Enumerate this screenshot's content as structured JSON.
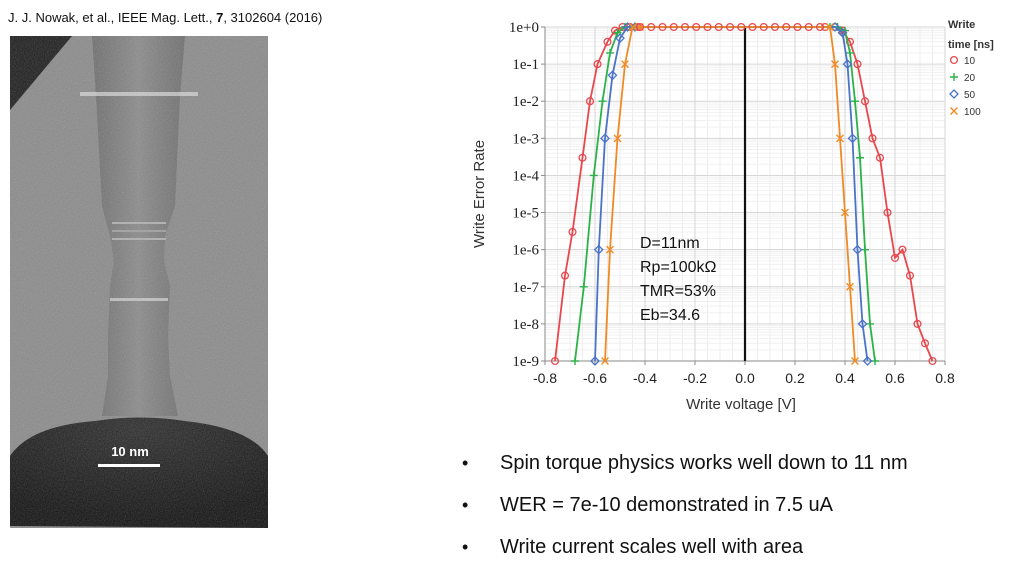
{
  "citation": {
    "prefix": "J. J. Nowak, et al., IEEE Mag. Lett., ",
    "volume": "7",
    "suffix": ", 3102604 (2016)"
  },
  "tem_image": {
    "scale_label": "10 nm"
  },
  "bullets": [
    "Spin torque physics works well down to 11 nm",
    "WER = 7e-10 demonstrated in 7.5 uA",
    "Write current scales well with area"
  ],
  "chart_data": {
    "type": "line",
    "title": "",
    "xlabel": "Write voltage [V]",
    "ylabel": "Write Error Rate",
    "xlim": [
      -0.8,
      0.8
    ],
    "ylim": [
      1e-09,
      1
    ],
    "y_scale": "log",
    "x_ticks": [
      -0.8,
      -0.6,
      -0.4,
      -0.2,
      0.0,
      0.2,
      0.4,
      0.6,
      0.8
    ],
    "x_tick_labels": [
      "-0.8",
      "-0.6",
      "-0.4",
      "-0.2",
      "0.0",
      "0.2",
      "0.4",
      "0.6",
      "0.8"
    ],
    "y_ticks": [
      1,
      0.1,
      0.01,
      0.001,
      0.0001,
      1e-05,
      1e-06,
      1e-07,
      1e-08,
      1e-09
    ],
    "y_tick_labels": [
      "1e+0",
      "1e-1",
      "1e-2",
      "1e-3",
      "1e-4",
      "1e-5",
      "1e-6",
      "1e-7",
      "1e-8",
      "1e-9"
    ],
    "grid": true,
    "legend": {
      "title_line1": "Write",
      "title_line2": "time [ns]",
      "placement": "top-right"
    },
    "annotations": [
      "D=11nm",
      "Rp=100kΩ",
      "TMR=53%",
      "Eb=34.6"
    ],
    "series": [
      {
        "name": "10",
        "color": "#e8474d",
        "marker": "circle",
        "negative": [
          [
            -0.76,
            1e-09
          ],
          [
            -0.72,
            2e-07
          ],
          [
            -0.69,
            3e-06
          ],
          [
            -0.65,
            0.0003
          ],
          [
            -0.62,
            0.01
          ],
          [
            -0.59,
            0.1
          ],
          [
            -0.55,
            0.4
          ],
          [
            -0.52,
            0.8
          ],
          [
            -0.49,
            1
          ],
          [
            -0.46,
            1
          ],
          [
            -0.43,
            1
          ]
        ],
        "positive": [
          [
            0.32,
            1
          ],
          [
            0.36,
            1
          ],
          [
            0.39,
            0.8
          ],
          [
            0.42,
            0.4
          ],
          [
            0.45,
            0.1
          ],
          [
            0.48,
            0.01
          ],
          [
            0.51,
            0.001
          ],
          [
            0.54,
            0.0003
          ],
          [
            0.57,
            1e-05
          ],
          [
            0.6,
            6e-07
          ],
          [
            0.63,
            1e-06
          ],
          [
            0.66,
            2e-07
          ],
          [
            0.69,
            1e-08
          ],
          [
            0.72,
            3e-09
          ],
          [
            0.75,
            1e-09
          ]
        ]
      },
      {
        "name": "20",
        "color": "#2db24a",
        "marker": "plus",
        "negative": [
          [
            -0.68,
            1e-09
          ],
          [
            -0.645,
            1e-07
          ],
          [
            -0.605,
            0.0001
          ],
          [
            -0.57,
            0.01
          ],
          [
            -0.54,
            0.2
          ],
          [
            -0.51,
            0.7
          ],
          [
            -0.48,
            1
          ],
          [
            -0.44,
            1
          ]
        ],
        "positive": [
          [
            0.34,
            1
          ],
          [
            0.37,
            1
          ],
          [
            0.4,
            0.8
          ],
          [
            0.42,
            0.2
          ],
          [
            0.44,
            0.01
          ],
          [
            0.46,
            0.0003
          ],
          [
            0.48,
            1e-06
          ],
          [
            0.5,
            1e-08
          ],
          [
            0.52,
            1e-09
          ]
        ]
      },
      {
        "name": "50",
        "color": "#4a73c9",
        "marker": "diamond",
        "negative": [
          [
            -0.6,
            1e-09
          ],
          [
            -0.585,
            1e-06
          ],
          [
            -0.56,
            0.001
          ],
          [
            -0.53,
            0.05
          ],
          [
            -0.5,
            0.5
          ],
          [
            -0.47,
            1
          ],
          [
            -0.44,
            1
          ]
        ],
        "positive": [
          [
            0.36,
            1
          ],
          [
            0.39,
            0.7
          ],
          [
            0.41,
            0.1
          ],
          [
            0.43,
            0.001
          ],
          [
            0.45,
            1e-06
          ],
          [
            0.47,
            1e-08
          ],
          [
            0.49,
            1e-09
          ]
        ]
      },
      {
        "name": "100",
        "color": "#f08a24",
        "marker": "cross",
        "negative": [
          [
            -0.56,
            1e-09
          ],
          [
            -0.54,
            1e-06
          ],
          [
            -0.51,
            0.001
          ],
          [
            -0.48,
            0.1
          ],
          [
            -0.45,
            1
          ],
          [
            -0.42,
            1
          ]
        ],
        "positive": [
          [
            0.34,
            1
          ],
          [
            0.36,
            0.1
          ],
          [
            0.38,
            0.001
          ],
          [
            0.4,
            1e-05
          ],
          [
            0.42,
            1e-07
          ],
          [
            0.44,
            1e-09
          ]
        ]
      }
    ]
  }
}
